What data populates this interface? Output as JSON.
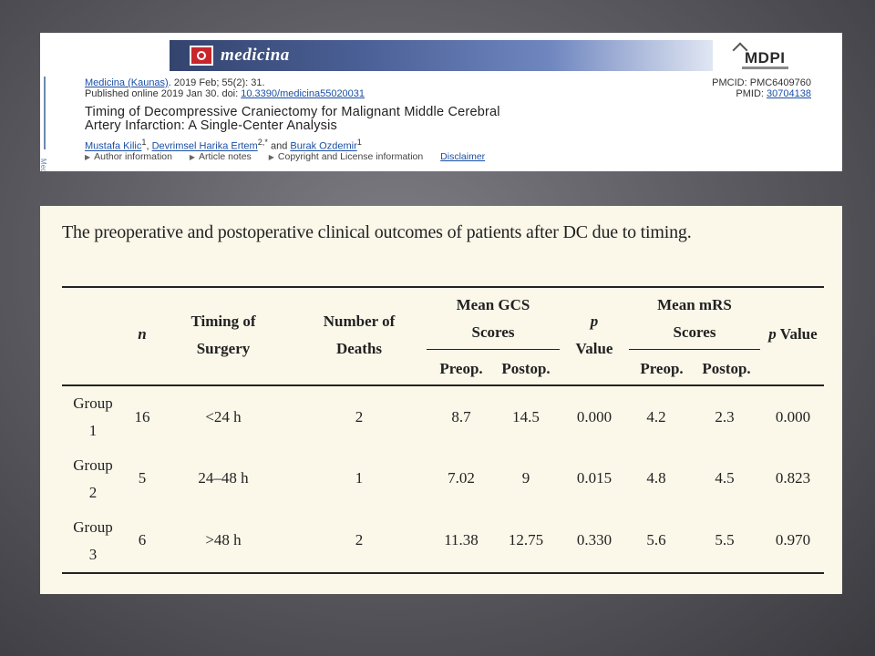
{
  "citation": {
    "sidebar_text": "Medicina (K",
    "journal_name": "medicina",
    "publisher": "MDPI",
    "journal_link": "Medicina (Kaunas)",
    "citation_rest": ". 2019 Feb; 55(2): 31.",
    "published_prefix": "Published online 2019 Jan 30. doi: ",
    "doi": "10.3390/medicina55020031",
    "pmcid": "PMCID: PMC6409760",
    "pmid_label": "PMID: ",
    "pmid": "30704138",
    "title_line1": "Timing of Decompressive Craniectomy for Malignant Middle Cerebral",
    "title_line2": "Artery Infarction: A Single-Center Analysis",
    "authors": [
      {
        "name": "Mustafa Kilic",
        "sup": "1"
      },
      {
        "name": "Devrimsel Harika Ertem",
        "sup": "2,*"
      },
      {
        "name": "Burak Ozdemir",
        "sup": "1"
      }
    ],
    "sep_comma": ", ",
    "sep_and": " and ",
    "info_links": [
      "Author information",
      "Article notes",
      "Copyright and License information"
    ],
    "disclaimer": "Disclaimer"
  },
  "table": {
    "caption": "The preoperative and postoperative clinical outcomes of patients after DC due to timing.",
    "headers": {
      "n": "n",
      "timing_line1": "Timing of",
      "timing_line2": "Surgery",
      "deaths_line1": "Number of",
      "deaths_line2": "Deaths",
      "gcs_line1": "Mean GCS",
      "gcs_line2": "Scores",
      "p1_line1": "p",
      "p1_line2": "Value",
      "mrs_line1": "Mean mRS",
      "mrs_line2": "Scores",
      "p2_italic": "p",
      "p2_rest": " Value",
      "preop": "Preop.",
      "postop": "Postop."
    },
    "rows": [
      {
        "group_line1": "Group",
        "group_line2": "1",
        "n": "16",
        "timing": "<24 h",
        "deaths": "2",
        "gcs_preop": "8.7",
        "gcs_postop": "14.5",
        "gcs_p": "0.000",
        "mrs_preop": "4.2",
        "mrs_postop": "2.3",
        "mrs_p": "0.000"
      },
      {
        "group_line1": "Group",
        "group_line2": "2",
        "n": "5",
        "timing": "24–48 h",
        "deaths": "1",
        "gcs_preop": "7.02",
        "gcs_postop": "9",
        "gcs_p": "0.015",
        "mrs_preop": "4.8",
        "mrs_postop": "4.5",
        "mrs_p": "0.823"
      },
      {
        "group_line1": "Group",
        "group_line2": "3",
        "n": "6",
        "timing": ">48 h",
        "deaths": "2",
        "gcs_preop": "11.38",
        "gcs_postop": "12.75",
        "gcs_p": "0.330",
        "mrs_preop": "5.6",
        "mrs_postop": "5.5",
        "mrs_p": "0.970"
      }
    ]
  }
}
